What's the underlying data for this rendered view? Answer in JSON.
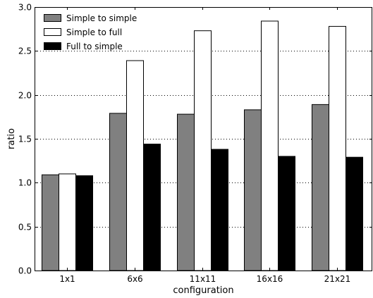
{
  "chart_data": {
    "type": "bar",
    "title": "",
    "xlabel": "configuration",
    "ylabel": "ratio",
    "ylim": [
      0,
      3.0
    ],
    "yticks": [
      0.0,
      0.5,
      1.0,
      1.5,
      2.0,
      2.5,
      3.0
    ],
    "ytick_labels": [
      "0.0",
      "0.5",
      "1.0",
      "1.5",
      "2.0",
      "2.5",
      "3.0"
    ],
    "categories": [
      "1x1",
      "6x6",
      "11x11",
      "16x16",
      "21x21"
    ],
    "grid": "horizontal dotted",
    "legend_position": "top-left",
    "series": [
      {
        "name": "Simple to simple",
        "color": "#808080",
        "values": [
          1.09,
          1.79,
          1.78,
          1.83,
          1.89
        ]
      },
      {
        "name": "Simple to full",
        "color": "#ffffff",
        "values": [
          1.1,
          2.39,
          2.73,
          2.84,
          2.78
        ]
      },
      {
        "name": "Full to simple",
        "color": "#000000",
        "values": [
          1.08,
          1.44,
          1.38,
          1.3,
          1.29
        ]
      }
    ]
  }
}
